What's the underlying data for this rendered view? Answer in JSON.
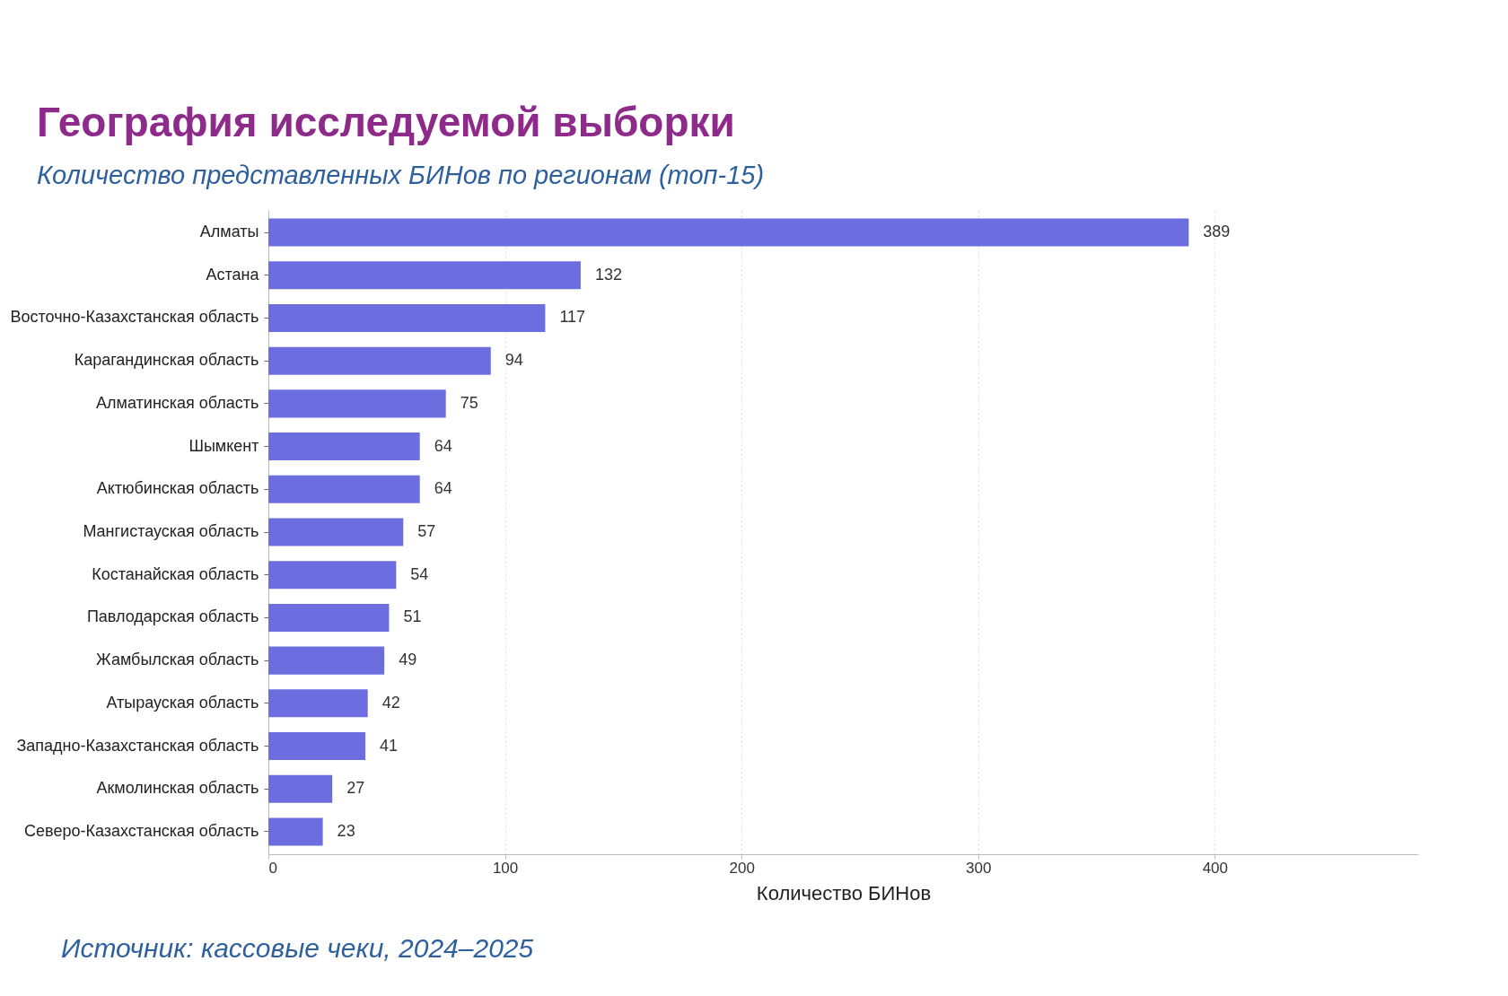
{
  "chart_data": {
    "type": "bar",
    "orientation": "horizontal",
    "title": "География исследуемой выборки",
    "subtitle": "Количество представленных БИНов по регионам (топ-15)",
    "xlabel": "Количество БИНов",
    "categories": [
      "Алматы",
      "Астана",
      "Восточно-Казахстанская область",
      "Карагандинская область",
      "Алматинская область",
      "Шымкент",
      "Актюбинская область",
      "Мангистауская область",
      "Костанайская область",
      "Павлодарская область",
      "Жамбылская область",
      "Атырауская область",
      "Западно-Казахстанская область",
      "Акмолинская область",
      "Северо-Казахстанская область"
    ],
    "values": [
      389,
      132,
      117,
      94,
      75,
      64,
      64,
      57,
      54,
      51,
      49,
      42,
      41,
      27,
      23
    ],
    "color": "#6c6ee0",
    "xlim": [
      0,
      486
    ],
    "xticks": [
      0,
      100,
      200,
      300,
      400
    ],
    "grid": "x",
    "data_labels": true,
    "annotations": [
      "Источник: кассовые чеки, 2024–2025"
    ]
  }
}
